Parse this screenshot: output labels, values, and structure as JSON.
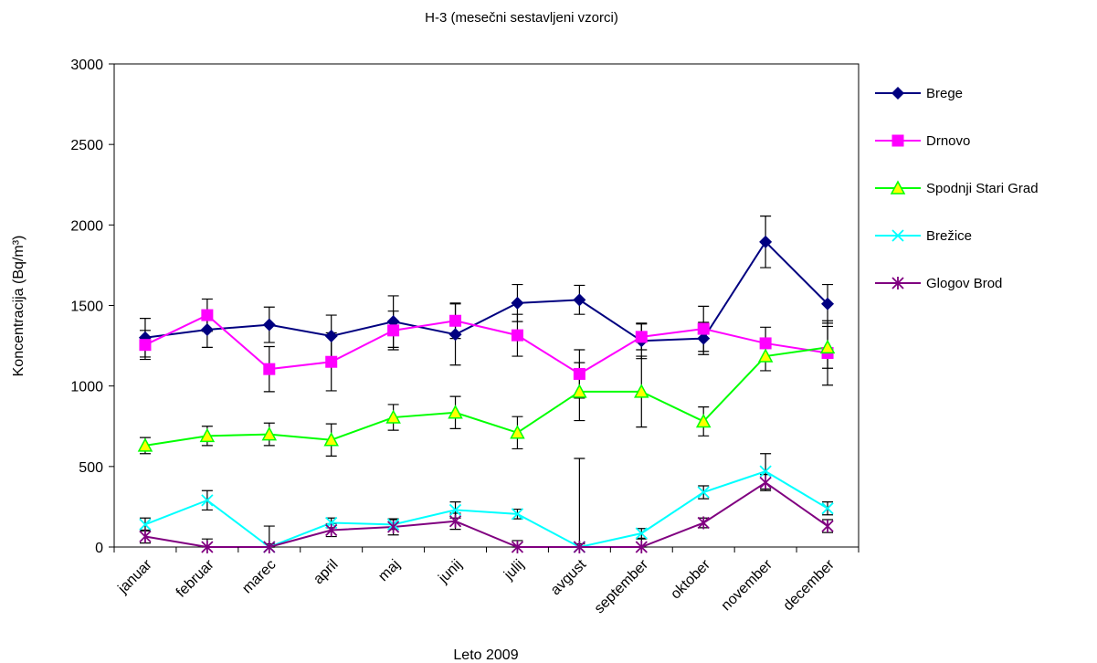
{
  "chart_data": {
    "type": "line",
    "title": "H-3 (mesečni sestavljeni vzorci)",
    "xlabel": "Leto 2009",
    "ylabel": "Koncentracija (Bq/m³)",
    "ylim": [
      0,
      3000
    ],
    "yticks": [
      0,
      500,
      1000,
      1500,
      2000,
      2500,
      3000
    ],
    "grid": false,
    "legend_position": "right",
    "categories": [
      "januar",
      "februar",
      "marec",
      "april",
      "maj",
      "junij",
      "julij",
      "avgust",
      "september",
      "oktober",
      "november",
      "december"
    ],
    "series": [
      {
        "name": "Brege",
        "color": "#000080",
        "marker": "diamond",
        "values": [
          1300,
          1350,
          1380,
          1310,
          1400,
          1320,
          1515,
          1535,
          1280,
          1295,
          1895,
          1510
        ],
        "errors": [
          120,
          110,
          110,
          130,
          160,
          190,
          115,
          90,
          110,
          100,
          160,
          120
        ]
      },
      {
        "name": "Drnovo",
        "color": "#FF00FF",
        "marker": "square",
        "values": [
          1255,
          1440,
          1105,
          1150,
          1345,
          1405,
          1315,
          1075,
          1305,
          1355,
          1265,
          1205
        ],
        "errors": [
          90,
          100,
          140,
          180,
          120,
          110,
          130,
          150,
          80,
          140,
          100,
          200
        ]
      },
      {
        "name": "Spodnji Stari Grad",
        "color": "#00FF00",
        "fill": "#FFFF00",
        "marker": "triangle",
        "values": [
          630,
          690,
          700,
          665,
          805,
          835,
          710,
          965,
          965,
          780,
          1185,
          1240
        ],
        "errors": [
          50,
          60,
          70,
          100,
          80,
          100,
          100,
          180,
          220,
          90,
          90,
          130
        ]
      },
      {
        "name": "Brežice",
        "color": "#00FFFF",
        "marker": "x",
        "values": [
          140,
          290,
          0,
          150,
          140,
          230,
          205,
          0,
          85,
          340,
          470,
          240
        ],
        "errors": [
          40,
          60,
          20,
          30,
          30,
          50,
          30,
          20,
          30,
          40,
          110,
          40
        ]
      },
      {
        "name": "Glogov Brod",
        "color": "#800080",
        "marker": "star",
        "values": [
          65,
          0,
          0,
          105,
          125,
          160,
          0,
          0,
          0,
          150,
          400,
          130
        ],
        "errors": [
          40,
          50,
          130,
          40,
          50,
          50,
          40,
          550,
          50,
          30,
          50,
          40
        ]
      }
    ]
  }
}
